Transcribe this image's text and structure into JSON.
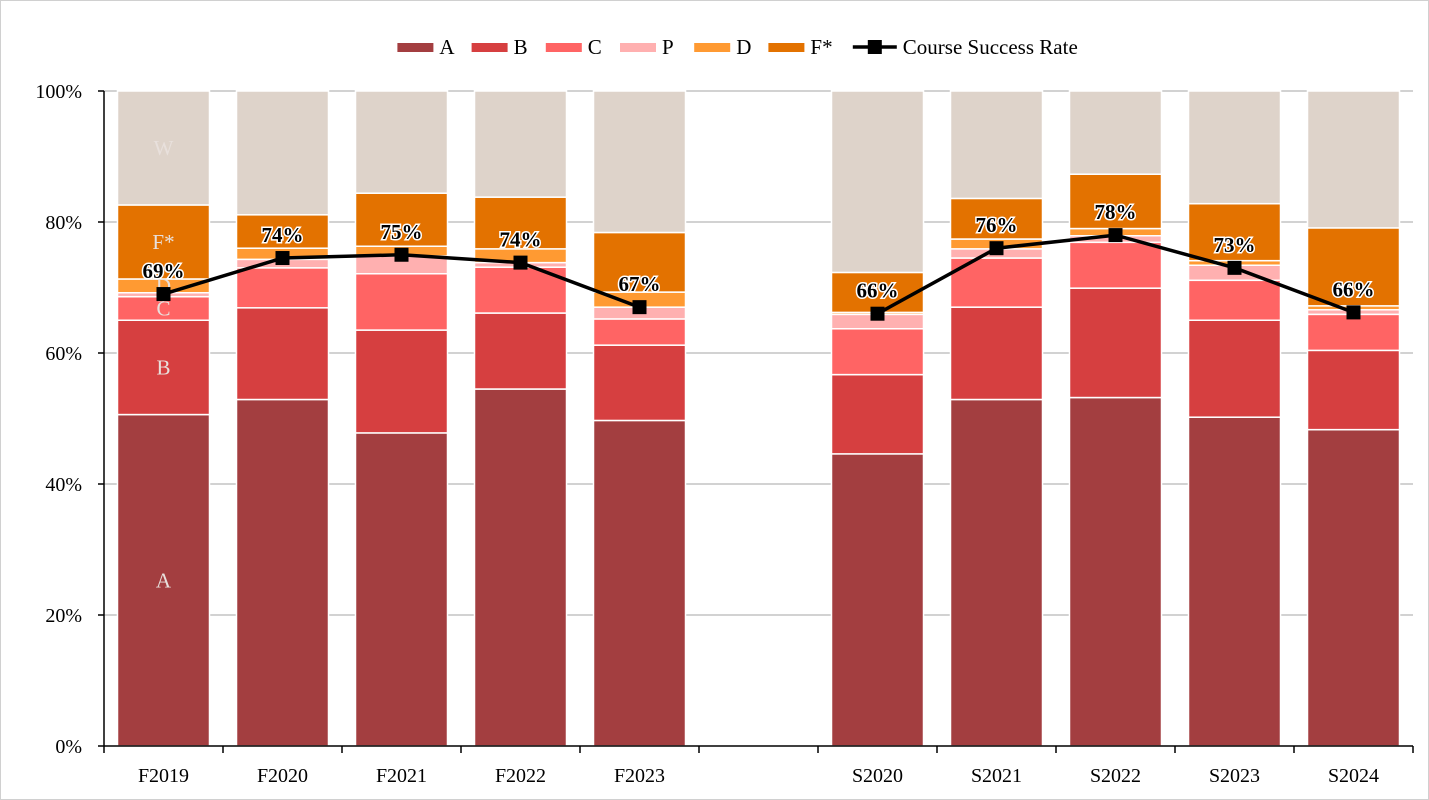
{
  "chart_data": {
    "type": "bar",
    "stacked": true,
    "categories": [
      "F2019",
      "F2020",
      "F2021",
      "F2022",
      "F2023",
      "",
      "S2020",
      "S2021",
      "S2022",
      "S2023",
      "S2024"
    ],
    "series": [
      {
        "name": "A",
        "color": "#a33e40",
        "values": [
          50.6,
          52.9,
          47.8,
          54.5,
          49.7,
          null,
          44.6,
          52.9,
          53.2,
          50.2,
          48.3
        ]
      },
      {
        "name": "B",
        "color": "#d63f40",
        "values": [
          14.4,
          14.0,
          15.7,
          11.6,
          11.5,
          null,
          12.1,
          14.1,
          16.7,
          14.8,
          12.1
        ]
      },
      {
        "name": "C",
        "color": "#ff6464",
        "values": [
          3.6,
          6.1,
          8.6,
          7.0,
          4.0,
          null,
          7.0,
          7.5,
          7.0,
          6.1,
          5.5
        ]
      },
      {
        "name": "P",
        "color": "#ffb0b0",
        "values": [
          0.6,
          1.3,
          2.7,
          0.7,
          1.8,
          null,
          2.2,
          1.4,
          1.0,
          2.3,
          0.7
        ]
      },
      {
        "name": "D",
        "color": "#ff9a32",
        "values": [
          2.1,
          1.7,
          1.5,
          2.1,
          2.3,
          null,
          0.3,
          1.5,
          1.1,
          0.7,
          0.6
        ]
      },
      {
        "name": "F*",
        "color": "#e37200",
        "values": [
          11.3,
          5.1,
          8.1,
          7.9,
          9.1,
          null,
          6.1,
          6.2,
          8.3,
          8.7,
          11.9
        ]
      },
      {
        "name": "W",
        "color": "#ded3ca",
        "values": [
          17.4,
          18.9,
          15.6,
          16.2,
          21.6,
          null,
          27.7,
          16.4,
          12.7,
          17.2,
          20.9
        ]
      }
    ],
    "line": {
      "name": "Course Success Rate",
      "color": "#000000",
      "values": [
        69,
        74.5,
        75,
        73.8,
        67,
        null,
        66,
        76,
        78,
        73,
        66.2
      ],
      "labels": [
        "69%",
        "74%",
        "75%",
        "74%",
        "67%",
        "",
        "66%",
        "76%",
        "78%",
        "73%",
        "66%"
      ]
    },
    "legend": [
      "A",
      "B",
      "C",
      "P",
      "D",
      "F*",
      "Course Success Rate"
    ],
    "legend_position": "top",
    "segment_labels": {
      "category": "F2019",
      "labels": [
        "A",
        "B",
        "C",
        "P",
        "D",
        "F*",
        "W"
      ]
    },
    "y_ticks": [
      "0%",
      "20%",
      "40%",
      "60%",
      "80%",
      "100%"
    ],
    "ylim": [
      0,
      100
    ],
    "grid": true,
    "title": "",
    "xlabel": "",
    "ylabel": ""
  }
}
